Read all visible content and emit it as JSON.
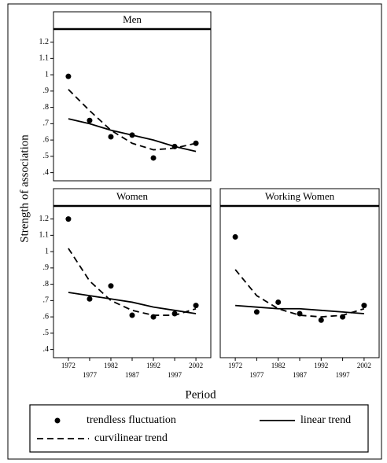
{
  "y_label": "Strength of association",
  "x_label": "Period",
  "chart_data": [
    {
      "type": "line",
      "title": "Men",
      "x": [
        1972,
        1977,
        1982,
        1987,
        1992,
        1997,
        2002
      ],
      "xlim": [
        1968.5,
        2005.5
      ],
      "ylim": [
        0.35,
        1.28
      ],
      "yticks": [
        {
          "value": 0.4,
          "label": ".4"
        },
        {
          "value": 0.5,
          "label": ".5"
        },
        {
          "value": 0.6,
          "label": ".6"
        },
        {
          "value": 0.7,
          "label": ".7"
        },
        {
          "value": 0.8,
          "label": ".8"
        },
        {
          "value": 0.9,
          "label": ".9"
        },
        1,
        1.1,
        1.2
      ],
      "series": [
        {
          "name": "trendless fluctuation",
          "style": "points",
          "color": "#000000",
          "values": [
            0.99,
            0.72,
            0.62,
            0.63,
            0.49,
            0.56,
            0.58
          ]
        },
        {
          "name": "linear trend",
          "style": "solid",
          "color": "#000000",
          "values": [
            0.73,
            0.7,
            0.66,
            0.63,
            0.6,
            0.56,
            0.53
          ]
        },
        {
          "name": "curvilinear trend",
          "style": "dashed",
          "color": "#000000",
          "values": [
            0.91,
            0.78,
            0.66,
            0.58,
            0.54,
            0.55,
            0.58
          ]
        }
      ]
    },
    {
      "type": "line",
      "title": "Women",
      "x": [
        1972,
        1977,
        1982,
        1987,
        1992,
        1997,
        2002
      ],
      "xlim": [
        1968.5,
        2005.5
      ],
      "ylim": [
        0.35,
        1.28
      ],
      "xticks": [
        1972,
        1977,
        1982,
        1987,
        1992,
        1997,
        2002
      ],
      "yticks": [
        {
          "value": 0.4,
          "label": ".4"
        },
        {
          "value": 0.5,
          "label": ".5"
        },
        {
          "value": 0.6,
          "label": ".6"
        },
        {
          "value": 0.7,
          "label": ".7"
        },
        {
          "value": 0.8,
          "label": ".8"
        },
        {
          "value": 0.9,
          "label": ".9"
        },
        1,
        1.1,
        1.2
      ],
      "series": [
        {
          "name": "trendless fluctuation",
          "style": "points",
          "color": "#000000",
          "values": [
            1.2,
            0.71,
            0.79,
            0.61,
            0.6,
            0.62,
            0.67
          ]
        },
        {
          "name": "linear trend",
          "style": "solid",
          "color": "#000000",
          "values": [
            0.75,
            0.73,
            0.71,
            0.69,
            0.66,
            0.64,
            0.62
          ]
        },
        {
          "name": "curvilinear trend",
          "style": "dashed",
          "color": "#000000",
          "values": [
            1.02,
            0.82,
            0.7,
            0.64,
            0.61,
            0.61,
            0.65
          ]
        }
      ]
    },
    {
      "type": "line",
      "title": "Working Women",
      "x": [
        1972,
        1977,
        1982,
        1987,
        1992,
        1997,
        2002
      ],
      "xlim": [
        1968.5,
        2005.5
      ],
      "ylim": [
        0.35,
        1.28
      ],
      "xticks": [
        1972,
        1977,
        1982,
        1987,
        1992,
        1997,
        2002
      ],
      "series": [
        {
          "name": "trendless fluctuation",
          "style": "points",
          "color": "#000000",
          "values": [
            1.09,
            0.63,
            0.69,
            0.62,
            0.58,
            0.6,
            0.67
          ]
        },
        {
          "name": "linear trend",
          "style": "solid",
          "color": "#000000",
          "values": [
            0.67,
            0.66,
            0.65,
            0.65,
            0.64,
            0.63,
            0.62
          ]
        },
        {
          "name": "curvilinear trend",
          "style": "dashed",
          "color": "#000000",
          "values": [
            0.89,
            0.73,
            0.65,
            0.61,
            0.6,
            0.61,
            0.65
          ]
        }
      ]
    }
  ]
}
